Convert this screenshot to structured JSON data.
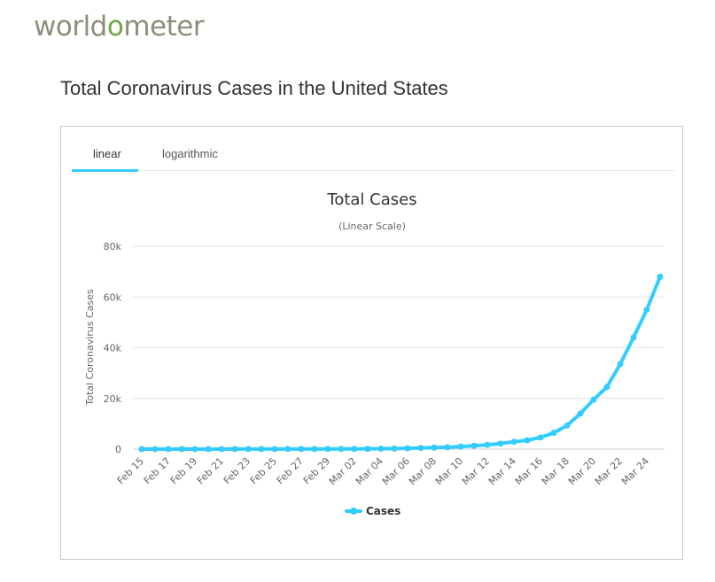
{
  "logo": {
    "prefix": "world",
    "o": "o",
    "suffix": "meter"
  },
  "page_title": "Total Coronavirus Cases in the United States",
  "tabs": [
    {
      "label": "linear",
      "active": true
    },
    {
      "label": "logarithmic",
      "active": false
    }
  ],
  "colors": {
    "series": "#33ccff",
    "accent_tab": "#33ccff",
    "logo_o": "#6aa847"
  },
  "chart_data": {
    "type": "line",
    "title": "Total Cases",
    "subtitle": "(Linear Scale)",
    "xlabel": "",
    "ylabel": "Total Coronavirus Cases",
    "ylim": [
      0,
      80000
    ],
    "y_ticks": [
      0,
      20000,
      40000,
      60000,
      80000
    ],
    "y_tick_labels": [
      "0",
      "20k",
      "40k",
      "60k",
      "80k"
    ],
    "x_tick_labels": [
      "Feb 15",
      "Feb 17",
      "Feb 19",
      "Feb 21",
      "Feb 23",
      "Feb 25",
      "Feb 27",
      "Feb 29",
      "Mar 02",
      "Mar 04",
      "Mar 06",
      "Mar 08",
      "Mar 10",
      "Mar 12",
      "Mar 14",
      "Mar 16",
      "Mar 18",
      "Mar 20",
      "Mar 22",
      "Mar 24"
    ],
    "grid": true,
    "legend": "bottom-center",
    "categories": [
      "Feb 15",
      "Feb 16",
      "Feb 17",
      "Feb 18",
      "Feb 19",
      "Feb 20",
      "Feb 21",
      "Feb 22",
      "Feb 23",
      "Feb 24",
      "Feb 25",
      "Feb 26",
      "Feb 27",
      "Feb 28",
      "Feb 29",
      "Mar 01",
      "Mar 02",
      "Mar 03",
      "Mar 04",
      "Mar 05",
      "Mar 06",
      "Mar 07",
      "Mar 08",
      "Mar 09",
      "Mar 10",
      "Mar 11",
      "Mar 12",
      "Mar 13",
      "Mar 14",
      "Mar 15",
      "Mar 16",
      "Mar 17",
      "Mar 18",
      "Mar 19",
      "Mar 20",
      "Mar 21",
      "Mar 22",
      "Mar 23",
      "Mar 24",
      "Mar 25"
    ],
    "series": [
      {
        "name": "Cases",
        "values": [
          15,
          15,
          15,
          15,
          15,
          15,
          15,
          35,
          35,
          53,
          57,
          60,
          60,
          62,
          70,
          75,
          100,
          125,
          160,
          230,
          320,
          450,
          600,
          750,
          1000,
          1300,
          1700,
          2200,
          2900,
          3500,
          4600,
          6400,
          9300,
          14000,
          19500,
          24500,
          33500,
          44000,
          55000,
          68000
        ]
      }
    ]
  }
}
